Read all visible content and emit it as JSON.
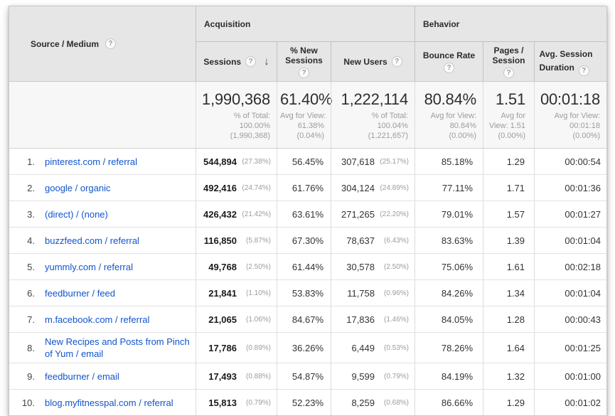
{
  "table": {
    "dimension_header": "Source / Medium",
    "groups": {
      "acquisition": "Acquisition",
      "behavior": "Behavior"
    },
    "columns": {
      "sessions": "Sessions",
      "pct_new_sessions": "% New Sessions",
      "new_users": "New Users",
      "bounce_rate": "Bounce Rate",
      "pages_session": "Pages / Session",
      "avg_duration": "Avg. Session Duration"
    },
    "sort": {
      "column": "sessions",
      "direction": "desc",
      "arrow": "↓"
    },
    "help_glyph": "?",
    "summary": {
      "sessions": {
        "value": "1,990,368",
        "sub": [
          "% of Total:",
          "100.00%",
          "(1,990,368)"
        ]
      },
      "pct_new": {
        "value": "61.40%",
        "sub": [
          "Avg for View:",
          "61.38%",
          "(0.04%)"
        ]
      },
      "new_users": {
        "value": "1,222,114",
        "sub": [
          "% of Total:",
          "100.04%",
          "(1,221,657)"
        ]
      },
      "bounce": {
        "value": "80.84%",
        "sub": [
          "Avg for View:",
          "80.84%",
          "(0.00%)"
        ]
      },
      "pages": {
        "value": "1.51",
        "sub": [
          "Avg for",
          "View: 1.51",
          "(0.00%)"
        ]
      },
      "duration": {
        "value": "00:01:18",
        "sub": [
          "Avg for View:",
          "00:01:18",
          "(0.00%)"
        ]
      }
    },
    "rows": [
      {
        "rank": "1.",
        "source": "pinterest.com / referral",
        "sessions": "544,894",
        "sessions_pct": "(27.38%)",
        "pct_new": "56.45%",
        "new_users": "307,618",
        "new_users_pct": "(25.17%)",
        "bounce": "85.18%",
        "pages": "1.29",
        "duration": "00:00:54"
      },
      {
        "rank": "2.",
        "source": "google / organic",
        "sessions": "492,416",
        "sessions_pct": "(24.74%)",
        "pct_new": "61.76%",
        "new_users": "304,124",
        "new_users_pct": "(24.89%)",
        "bounce": "77.11%",
        "pages": "1.71",
        "duration": "00:01:36"
      },
      {
        "rank": "3.",
        "source": "(direct) / (none)",
        "sessions": "426,432",
        "sessions_pct": "(21.42%)",
        "pct_new": "63.61%",
        "new_users": "271,265",
        "new_users_pct": "(22.20%)",
        "bounce": "79.01%",
        "pages": "1.57",
        "duration": "00:01:27"
      },
      {
        "rank": "4.",
        "source": "buzzfeed.com / referral",
        "sessions": "116,850",
        "sessions_pct": "(5.87%)",
        "pct_new": "67.30%",
        "new_users": "78,637",
        "new_users_pct": "(6.43%)",
        "bounce": "83.63%",
        "pages": "1.39",
        "duration": "00:01:04"
      },
      {
        "rank": "5.",
        "source": "yummly.com / referral",
        "sessions": "49,768",
        "sessions_pct": "(2.50%)",
        "pct_new": "61.44%",
        "new_users": "30,578",
        "new_users_pct": "(2.50%)",
        "bounce": "75.06%",
        "pages": "1.61",
        "duration": "00:02:18"
      },
      {
        "rank": "6.",
        "source": "feedburner / feed",
        "sessions": "21,841",
        "sessions_pct": "(1.10%)",
        "pct_new": "53.83%",
        "new_users": "11,758",
        "new_users_pct": "(0.96%)",
        "bounce": "84.26%",
        "pages": "1.34",
        "duration": "00:01:04"
      },
      {
        "rank": "7.",
        "source": "m.facebook.com / referral",
        "sessions": "21,065",
        "sessions_pct": "(1.06%)",
        "pct_new": "84.67%",
        "new_users": "17,836",
        "new_users_pct": "(1.46%)",
        "bounce": "84.05%",
        "pages": "1.28",
        "duration": "00:00:43"
      },
      {
        "rank": "8.",
        "source": "New Recipes and Posts from Pinch of Yum / email",
        "sessions": "17,786",
        "sessions_pct": "(0.89%)",
        "pct_new": "36.26%",
        "new_users": "6,449",
        "new_users_pct": "(0.53%)",
        "bounce": "78.26%",
        "pages": "1.64",
        "duration": "00:01:25"
      },
      {
        "rank": "9.",
        "source": "feedburner / email",
        "sessions": "17,493",
        "sessions_pct": "(0.88%)",
        "pct_new": "54.87%",
        "new_users": "9,599",
        "new_users_pct": "(0.79%)",
        "bounce": "84.19%",
        "pages": "1.32",
        "duration": "00:01:00"
      },
      {
        "rank": "10.",
        "source": "blog.myfitnesspal.com / referral",
        "sessions": "15,813",
        "sessions_pct": "(0.79%)",
        "pct_new": "52.23%",
        "new_users": "8,259",
        "new_users_pct": "(0.68%)",
        "bounce": "86.66%",
        "pages": "1.29",
        "duration": "00:01:02"
      }
    ]
  },
  "colors": {
    "link": "#1155cc",
    "header_bg": "#e6e6e6",
    "sorted_highlight": "#f7f7f7"
  }
}
